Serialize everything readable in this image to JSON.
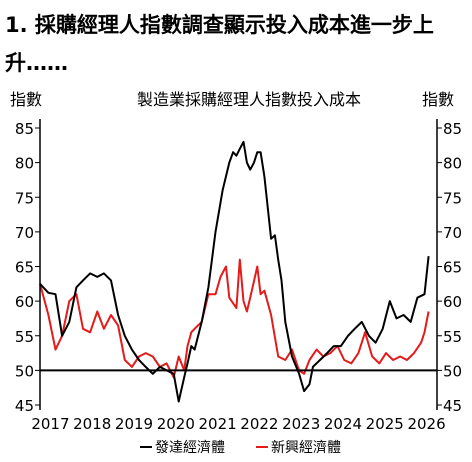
{
  "title": "1. 採購經理人指數調查顯示投入成本進一步上升……",
  "chart_data": {
    "type": "line",
    "title": "製造業採購經理人指數投入成本",
    "ylabel_left": "指數",
    "ylabel_right": "指數",
    "ylim": [
      45,
      85
    ],
    "yticks": [
      45,
      50,
      55,
      60,
      65,
      70,
      75,
      80,
      85
    ],
    "reference_line": 50,
    "xlim": [
      2016.8,
      2026.3
    ],
    "xticks": [
      "2017",
      "2018",
      "2019",
      "2020",
      "2021",
      "2022",
      "2023",
      "2024",
      "2025",
      "2026"
    ],
    "legend_position": "bottom",
    "series": [
      {
        "name": "發達經濟體",
        "color": "#000000",
        "x": [
          2016.8,
          2017.0,
          2017.17,
          2017.33,
          2017.5,
          2017.67,
          2017.83,
          2018.0,
          2018.17,
          2018.33,
          2018.5,
          2018.67,
          2018.83,
          2019.0,
          2019.17,
          2019.33,
          2019.5,
          2019.67,
          2019.83,
          2020.0,
          2020.12,
          2020.25,
          2020.33,
          2020.42,
          2020.5,
          2020.67,
          2020.83,
          2021.0,
          2021.17,
          2021.33,
          2021.42,
          2021.5,
          2021.58,
          2021.67,
          2021.75,
          2021.83,
          2021.92,
          2022.0,
          2022.08,
          2022.17,
          2022.33,
          2022.42,
          2022.5,
          2022.58,
          2022.67,
          2022.83,
          2023.0,
          2023.12,
          2023.25,
          2023.33,
          2023.5,
          2023.67,
          2023.83,
          2024.0,
          2024.17,
          2024.33,
          2024.5,
          2024.67,
          2024.83,
          2025.0,
          2025.17,
          2025.33,
          2025.5,
          2025.67,
          2025.83,
          2026.0,
          2026.1
        ],
        "values": [
          62.5,
          61.2,
          61.0,
          55.0,
          57.0,
          62.0,
          63.0,
          64.0,
          63.5,
          64.0,
          63.0,
          58.0,
          55.0,
          53.0,
          51.5,
          50.5,
          49.5,
          50.5,
          50.0,
          49.5,
          45.5,
          49.0,
          51.0,
          53.5,
          53.0,
          57.0,
          62.0,
          70.0,
          76.0,
          80.0,
          81.5,
          81.0,
          82.0,
          83.0,
          80.0,
          79.0,
          80.0,
          81.5,
          81.5,
          78.0,
          69.0,
          69.5,
          66.0,
          63.0,
          57.0,
          52.0,
          49.5,
          47.0,
          48.0,
          50.5,
          51.5,
          52.5,
          53.5,
          53.5,
          55.0,
          56.0,
          57.0,
          55.0,
          54.0,
          56.0,
          60.0,
          57.5,
          58.0,
          57.0,
          60.5,
          61.0,
          66.5
        ]
      },
      {
        "name": "新興經濟體",
        "color": "#e31b1b",
        "x": [
          2016.8,
          2017.0,
          2017.17,
          2017.33,
          2017.5,
          2017.67,
          2017.83,
          2018.0,
          2018.17,
          2018.33,
          2018.5,
          2018.67,
          2018.83,
          2019.0,
          2019.17,
          2019.33,
          2019.5,
          2019.67,
          2019.83,
          2020.0,
          2020.12,
          2020.25,
          2020.33,
          2020.42,
          2020.5,
          2020.67,
          2020.83,
          2021.0,
          2021.12,
          2021.25,
          2021.33,
          2021.5,
          2021.58,
          2021.67,
          2021.75,
          2021.83,
          2022.0,
          2022.08,
          2022.17,
          2022.33,
          2022.5,
          2022.67,
          2022.83,
          2023.0,
          2023.12,
          2023.25,
          2023.42,
          2023.58,
          2023.75,
          2023.92,
          2024.08,
          2024.25,
          2024.42,
          2024.58,
          2024.75,
          2024.92,
          2025.08,
          2025.25,
          2025.42,
          2025.58,
          2025.75,
          2025.92,
          2026.0,
          2026.1
        ],
        "values": [
          62.5,
          58.0,
          53.0,
          55.0,
          60.0,
          61.0,
          56.0,
          55.5,
          58.5,
          56.0,
          58.0,
          56.5,
          51.5,
          50.5,
          52.0,
          52.5,
          52.0,
          50.5,
          51.0,
          49.0,
          52.0,
          50.0,
          53.5,
          55.5,
          56.0,
          57.0,
          61.0,
          61.0,
          63.5,
          65.0,
          60.5,
          59.0,
          66.0,
          60.0,
          58.5,
          60.5,
          65.0,
          61.0,
          61.5,
          58.0,
          52.0,
          51.5,
          53.0,
          50.0,
          49.5,
          51.5,
          53.0,
          52.0,
          52.5,
          53.5,
          51.5,
          51.0,
          52.5,
          55.5,
          52.0,
          51.0,
          52.5,
          51.5,
          52.0,
          51.5,
          52.5,
          54.0,
          55.5,
          58.5
        ]
      }
    ]
  }
}
